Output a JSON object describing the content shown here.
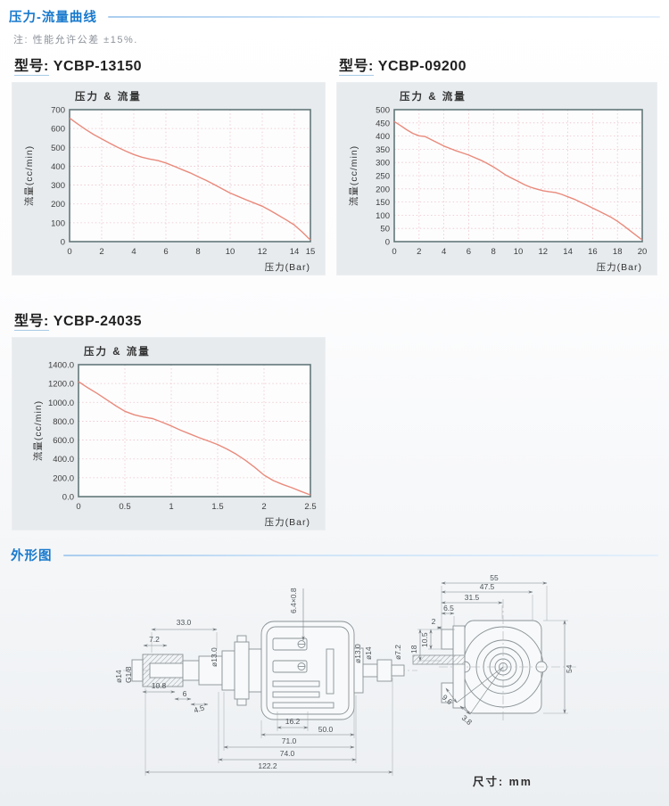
{
  "page": {
    "section1_title": "压力-流量曲线",
    "note": "注: 性能允许公差 ±15%.",
    "section2_title": "外形图",
    "units_label": "尺寸: mm"
  },
  "colors": {
    "accent_blue": "#1879cd",
    "curve_red": "#e98a7b",
    "grid_pink": "#eec3c8",
    "panel_gray": "#e7ebee"
  },
  "chart_data": [
    {
      "type": "line",
      "model_prefix": "型号:",
      "model_number": "YCBP-13150",
      "title": "压力 & 流量",
      "xlabel": "压力(Bar)",
      "ylabel": "流量(cc/min)",
      "xlim": [
        0,
        15
      ],
      "ylim": [
        0,
        700
      ],
      "xticks": [
        0,
        2,
        4,
        6,
        8,
        10,
        12,
        14,
        15
      ],
      "xtick_labels": [
        "0",
        "2",
        "4",
        "6",
        "8",
        "10",
        "12",
        "14",
        "15"
      ],
      "yticks": [
        0,
        100,
        200,
        300,
        400,
        500,
        600,
        700
      ],
      "ytick_labels": [
        "0",
        "100",
        "200",
        "300",
        "400",
        "500",
        "600",
        "700"
      ],
      "grid": true,
      "legend": "none",
      "series": [
        {
          "name": "flow-vs-pressure",
          "points": [
            [
              0,
              655
            ],
            [
              0.5,
              625
            ],
            [
              1,
              595
            ],
            [
              1.5,
              568
            ],
            [
              2,
              545
            ],
            [
              2.5,
              522
            ],
            [
              3,
              500
            ],
            [
              3.5,
              480
            ],
            [
              4,
              462
            ],
            [
              4.5,
              448
            ],
            [
              5,
              438
            ],
            [
              5.5,
              430
            ],
            [
              6,
              417
            ],
            [
              6.5,
              400
            ],
            [
              7,
              382
            ],
            [
              7.5,
              365
            ],
            [
              8,
              345
            ],
            [
              8.5,
              325
            ],
            [
              9,
              303
            ],
            [
              9.5,
              280
            ],
            [
              10,
              258
            ],
            [
              10.5,
              240
            ],
            [
              11,
              222
            ],
            [
              11.5,
              205
            ],
            [
              12,
              188
            ],
            [
              12.5,
              165
            ],
            [
              13,
              140
            ],
            [
              13.5,
              115
            ],
            [
              14,
              88
            ],
            [
              14.5,
              50
            ],
            [
              15,
              8
            ]
          ]
        }
      ]
    },
    {
      "type": "line",
      "model_prefix": "型号:",
      "model_number": "YCBP-09200",
      "title": "压力 & 流量",
      "xlabel": "压力(Bar)",
      "ylabel": "流量(cc/min)",
      "xlim": [
        0,
        20
      ],
      "ylim": [
        0,
        500
      ],
      "xticks": [
        0,
        2,
        4,
        6,
        8,
        10,
        12,
        14,
        16,
        18,
        20
      ],
      "xtick_labels": [
        "0",
        "2",
        "4",
        "6",
        "8",
        "10",
        "12",
        "14",
        "16",
        "18",
        "20"
      ],
      "yticks": [
        0,
        50,
        100,
        150,
        200,
        250,
        300,
        350,
        400,
        450,
        500
      ],
      "ytick_labels": [
        "0",
        "50",
        "100",
        "150",
        "200",
        "250",
        "300",
        "350",
        "400",
        "450",
        "500"
      ],
      "grid": true,
      "legend": "none",
      "series": [
        {
          "name": "flow-vs-pressure",
          "points": [
            [
              0,
              455
            ],
            [
              0.5,
              440
            ],
            [
              1,
              424
            ],
            [
              1.5,
              410
            ],
            [
              2,
              401
            ],
            [
              2.5,
              398
            ],
            [
              3,
              386
            ],
            [
              3.5,
              374
            ],
            [
              4,
              362
            ],
            [
              4.5,
              353
            ],
            [
              5,
              344
            ],
            [
              5.5,
              336
            ],
            [
              6,
              328
            ],
            [
              6.5,
              318
            ],
            [
              7,
              308
            ],
            [
              7.5,
              296
            ],
            [
              8,
              283
            ],
            [
              8.5,
              268
            ],
            [
              9,
              252
            ],
            [
              9.5,
              240
            ],
            [
              10,
              228
            ],
            [
              10.5,
              216
            ],
            [
              11,
              206
            ],
            [
              11.5,
              199
            ],
            [
              12,
              193
            ],
            [
              12.5,
              189
            ],
            [
              13,
              186
            ],
            [
              13.5,
              179
            ],
            [
              14,
              170
            ],
            [
              14.5,
              161
            ],
            [
              15,
              150
            ],
            [
              15.5,
              139
            ],
            [
              16,
              127
            ],
            [
              16.5,
              116
            ],
            [
              17,
              104
            ],
            [
              17.5,
              92
            ],
            [
              18,
              77
            ],
            [
              18.5,
              60
            ],
            [
              19,
              42
            ],
            [
              19.5,
              24
            ],
            [
              20,
              6
            ]
          ]
        }
      ]
    },
    {
      "type": "line",
      "model_prefix": "型号:",
      "model_number": "YCBP-24035",
      "title": "压力 & 流量",
      "xlabel": "压力(Bar)",
      "ylabel": "流量(cc/min)",
      "xlim": [
        0,
        2.5
      ],
      "ylim": [
        0,
        1400
      ],
      "xticks": [
        0,
        0.5,
        1,
        1.5,
        2,
        2.5
      ],
      "xtick_labels": [
        "0",
        "0.5",
        "1",
        "1.5",
        "2",
        "2.5"
      ],
      "yticks": [
        0,
        200,
        400,
        600,
        800,
        1000,
        1200,
        1400
      ],
      "ytick_labels": [
        "0.0",
        "200.0",
        "400.0",
        "600.0",
        "800.0",
        "1000.0",
        "1200.0",
        "1400.0"
      ],
      "grid": true,
      "legend": "none",
      "series": [
        {
          "name": "flow-vs-pressure",
          "points": [
            [
              0,
              1220
            ],
            [
              0.1,
              1155
            ],
            [
              0.2,
              1095
            ],
            [
              0.3,
              1030
            ],
            [
              0.4,
              965
            ],
            [
              0.5,
              905
            ],
            [
              0.6,
              868
            ],
            [
              0.7,
              845
            ],
            [
              0.8,
              828
            ],
            [
              0.9,
              790
            ],
            [
              1,
              750
            ],
            [
              1.1,
              705
            ],
            [
              1.2,
              665
            ],
            [
              1.3,
              625
            ],
            [
              1.4,
              590
            ],
            [
              1.5,
              552
            ],
            [
              1.6,
              505
            ],
            [
              1.7,
              450
            ],
            [
              1.8,
              385
            ],
            [
              1.9,
              310
            ],
            [
              2,
              228
            ],
            [
              2.1,
              170
            ],
            [
              2.2,
              130
            ],
            [
              2.3,
              95
            ],
            [
              2.4,
              55
            ],
            [
              2.5,
              18
            ]
          ]
        }
      ]
    }
  ],
  "drawing": {
    "side": {
      "dim_7_2": "7.2",
      "dim_33": "33.0",
      "phi_13_left": "ø13.0",
      "phi_14_inlet": "ø14",
      "g_thread": "G1/8",
      "dim_10_8": "10.8",
      "dim_6": "6",
      "dim_4_5": "4.5",
      "dim_6_4x0_8": "6.4×0.8",
      "phi_13_right": "ø13.0",
      "phi_14_right": "ø14",
      "phi_7_2": "ø7.2",
      "dim_16_2": "16.2",
      "dim_50": "50.0",
      "dim_71": "71.0",
      "dim_74": "74.0",
      "dim_122_2": "122.2"
    },
    "front": {
      "dim_55": "55",
      "dim_47_5": "47.5",
      "dim_31_5": "31.5",
      "dim_6_5": "6.5",
      "dim_2": "2",
      "dim_10_5": "10.5",
      "dim_18": "18",
      "dim_54": "54",
      "dim_9_6": "9.6",
      "dim_3_8": "3.8"
    }
  }
}
